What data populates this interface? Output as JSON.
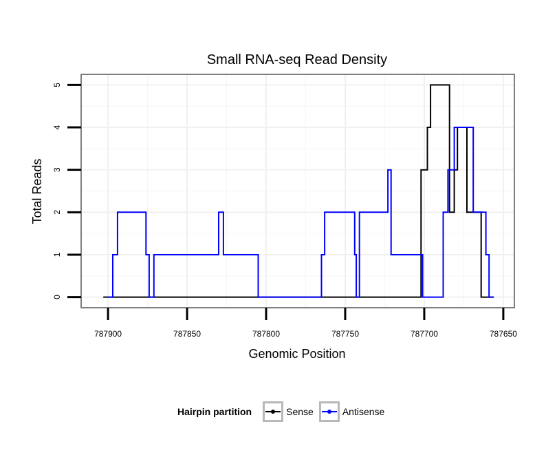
{
  "chart_data": {
    "type": "line",
    "title": "Small RNA-seq Read Density",
    "xlabel": "Genomic Position",
    "ylabel": "Total Reads",
    "xlim": [
      787917,
      787643
    ],
    "ylim": [
      -0.25,
      5.25
    ],
    "x_reversed": true,
    "grid": true,
    "x_ticks": [
      787900,
      787850,
      787800,
      787750,
      787700,
      787650
    ],
    "x_tick_labels": [
      "787900",
      "787850",
      "787800",
      "787750",
      "787700",
      "787650"
    ],
    "y_ticks": [
      0,
      1,
      2,
      3,
      4,
      5
    ],
    "y_tick_labels": [
      "0",
      "1",
      "2",
      "3",
      "4",
      "5"
    ],
    "legend": {
      "title": "Hairpin partition",
      "position": "bottom",
      "entries": [
        {
          "label": "Sense",
          "color": "#000000"
        },
        {
          "label": "Antisense",
          "color": "#0000ff"
        }
      ]
    },
    "series": [
      {
        "name": "Sense",
        "color": "#000000",
        "x": [
          787903,
          787702,
          787702,
          787698,
          787698,
          787696,
          787696,
          787693,
          787693,
          787684,
          787684,
          787681,
          787681,
          787679,
          787679,
          787677,
          787677,
          787673,
          787673,
          787664,
          787664,
          787656,
          787656,
          787656
        ],
        "y": [
          0,
          0,
          3,
          3,
          4,
          4,
          5,
          5,
          5,
          5,
          2,
          2,
          3,
          3,
          4,
          4,
          4,
          4,
          2,
          2,
          0,
          0,
          0,
          0
        ]
      },
      {
        "name": "Antisense",
        "color": "#0000ff",
        "x": [
          787900,
          787897,
          787897,
          787894,
          787894,
          787876,
          787876,
          787874,
          787874,
          787871,
          787871,
          787845,
          787845,
          787830,
          787830,
          787827,
          787827,
          787820,
          787820,
          787805,
          787805,
          787765,
          787765,
          787763,
          787763,
          787744,
          787744,
          787743,
          787743,
          787741,
          787741,
          787723,
          787723,
          787721,
          787721,
          787719,
          787719,
          787701,
          787701,
          787688,
          787688,
          787685,
          787685,
          787681,
          787681,
          787669,
          787669,
          787661,
          787661,
          787659,
          787659,
          787656
        ],
        "y": [
          0,
          0,
          1,
          1,
          2,
          2,
          1,
          1,
          0,
          0,
          1,
          1,
          1,
          1,
          2,
          2,
          1,
          1,
          1,
          1,
          0,
          0,
          1,
          1,
          2,
          2,
          1,
          1,
          0,
          0,
          2,
          2,
          3,
          3,
          1,
          1,
          1,
          1,
          0,
          0,
          2,
          2,
          3,
          3,
          4,
          4,
          2,
          2,
          1,
          1,
          0,
          0
        ]
      }
    ]
  }
}
